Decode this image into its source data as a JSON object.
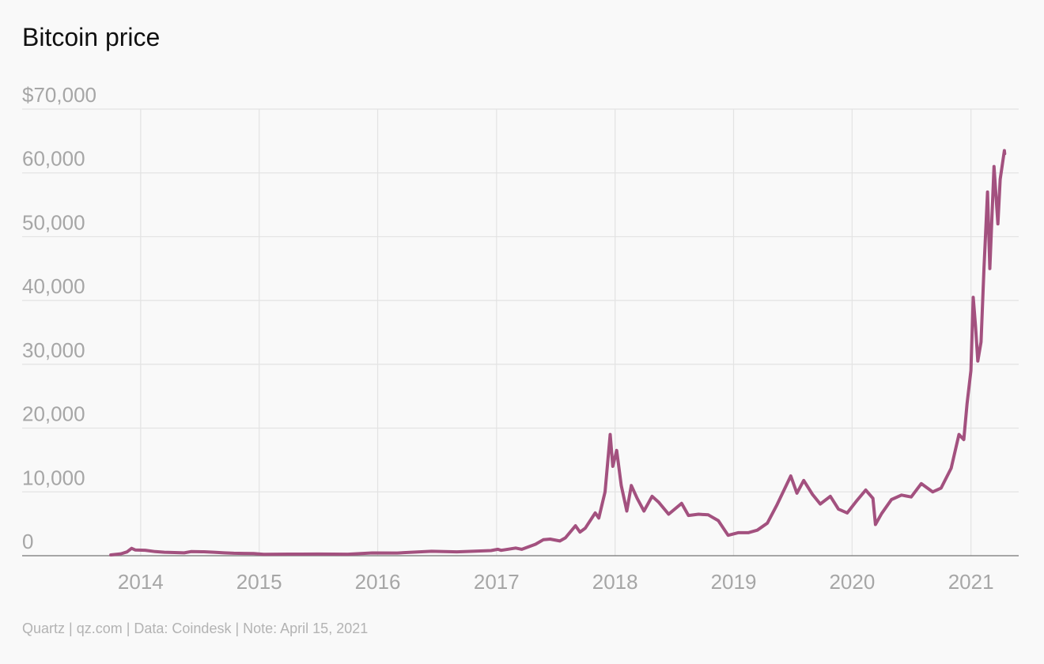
{
  "chart_data": {
    "type": "line",
    "title": "Bitcoin price",
    "footer": "Quartz | qz.com | Data: Coindesk | Note: April 15, 2021",
    "xlabel": "",
    "ylabel": "",
    "x_ticks": [
      "2014",
      "2015",
      "2016",
      "2017",
      "2018",
      "2019",
      "2020",
      "2021"
    ],
    "y_ticks": [
      "0",
      "10,000",
      "20,000",
      "30,000",
      "40,000",
      "50,000",
      "60,000",
      "$70,000"
    ],
    "ylim": [
      0,
      70000
    ],
    "xlim": [
      "2013-01-01",
      "2021-05-28"
    ],
    "grid": true,
    "line_color": "#a3517f",
    "series": [
      {
        "x": [
          "2013-10-01",
          "2013-11-01",
          "2013-11-20",
          "2013-12-04",
          "2013-12-15",
          "2014-01-15",
          "2014-02-15",
          "2014-03-15",
          "2014-04-15",
          "2014-05-15",
          "2014-06-05",
          "2014-07-15",
          "2014-08-15",
          "2014-09-15",
          "2014-10-15",
          "2014-11-15",
          "2014-12-15",
          "2015-01-15",
          "2015-04-01",
          "2015-07-01",
          "2015-10-01",
          "2015-12-15",
          "2016-03-01",
          "2016-06-15",
          "2016-09-01",
          "2016-12-15",
          "2017-01-05",
          "2017-01-15",
          "2017-03-01",
          "2017-03-20",
          "2017-05-01",
          "2017-05-25",
          "2017-06-15",
          "2017-07-15",
          "2017-08-01",
          "2017-09-01",
          "2017-09-15",
          "2017-10-01",
          "2017-11-01",
          "2017-11-12",
          "2017-12-01",
          "2017-12-17",
          "2017-12-25",
          "2018-01-06",
          "2018-01-20",
          "2018-02-06",
          "2018-02-20",
          "2018-03-10",
          "2018-03-31",
          "2018-04-25",
          "2018-05-15",
          "2018-06-15",
          "2018-07-25",
          "2018-08-15",
          "2018-09-15",
          "2018-10-15",
          "2018-11-15",
          "2018-12-15",
          "2019-01-15",
          "2019-02-15",
          "2019-03-15",
          "2019-04-15",
          "2019-05-15",
          "2019-06-26",
          "2019-07-15",
          "2019-08-05",
          "2019-09-01",
          "2019-09-25",
          "2019-10-26",
          "2019-11-20",
          "2019-12-17",
          "2020-01-15",
          "2020-02-12",
          "2020-03-05",
          "2020-03-13",
          "2020-04-01",
          "2020-05-01",
          "2020-06-01",
          "2020-07-01",
          "2020-08-01",
          "2020-09-05",
          "2020-10-01",
          "2020-11-01",
          "2020-11-25",
          "2020-12-10",
          "2020-12-20",
          "2021-01-01",
          "2021-01-08",
          "2021-01-15",
          "2021-01-22",
          "2021-02-01",
          "2021-02-10",
          "2021-02-21",
          "2021-02-28",
          "2021-03-13",
          "2021-03-25",
          "2021-04-01",
          "2021-04-14",
          "2021-04-15"
        ],
        "y": [
          120,
          300,
          600,
          1150,
          900,
          850,
          650,
          550,
          500,
          450,
          640,
          620,
          550,
          450,
          380,
          360,
          330,
          220,
          250,
          260,
          240,
          430,
          420,
          700,
          610,
          800,
          1000,
          840,
          1200,
          1000,
          1800,
          2500,
          2600,
          2300,
          2800,
          4700,
          3700,
          4300,
          6700,
          5900,
          10000,
          19000,
          14000,
          16500,
          11000,
          7000,
          11000,
          9000,
          7000,
          9300,
          8400,
          6500,
          8200,
          6300,
          6500,
          6400,
          5500,
          3200,
          3600,
          3600,
          4000,
          5100,
          8000,
          12500,
          9800,
          11800,
          9600,
          8100,
          9300,
          7300,
          6700,
          8600,
          10300,
          9000,
          4900,
          6600,
          8800,
          9500,
          9200,
          11300,
          10000,
          10600,
          13700,
          19000,
          18200,
          23800,
          29000,
          40500,
          36000,
          30500,
          33500,
          45000,
          57000,
          45000,
          61000,
          52000,
          59000,
          63500,
          63000
        ]
      }
    ]
  }
}
